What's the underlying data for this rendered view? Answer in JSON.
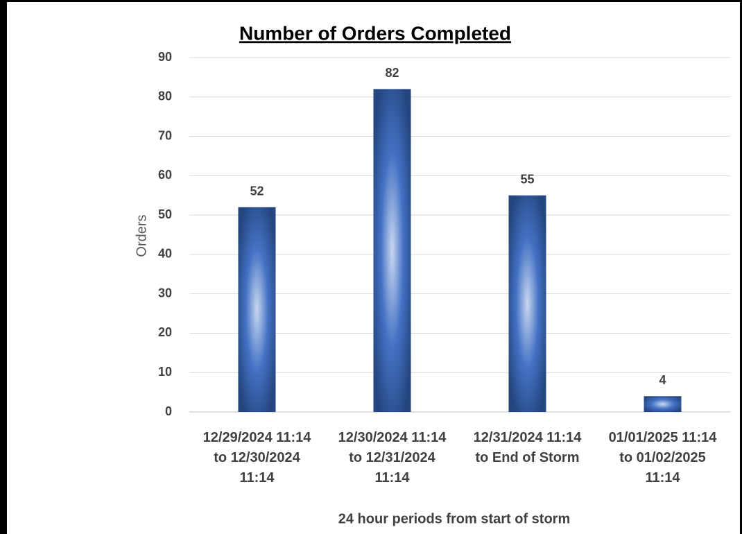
{
  "chart_data": {
    "type": "bar",
    "title": "Number of Orders Completed",
    "x_label": "24 hour periods from start of storm",
    "y_label": "Orders",
    "categories": [
      "12/29/2024 11:14 to 12/30/2024 11:14",
      "12/30/2024 11:14 to 12/31/2024 11:14",
      "12/31/2024 11:14 to End of Storm",
      "01/01/2025 11:14 to 01/02/2025 11:14"
    ],
    "values": [
      52,
      82,
      55,
      4
    ],
    "color": "#4472c4",
    "ylim": [
      0,
      90
    ],
    "yticks": [
      0,
      10,
      20,
      30,
      40,
      50,
      60,
      70,
      80,
      90
    ],
    "grid": true
  }
}
